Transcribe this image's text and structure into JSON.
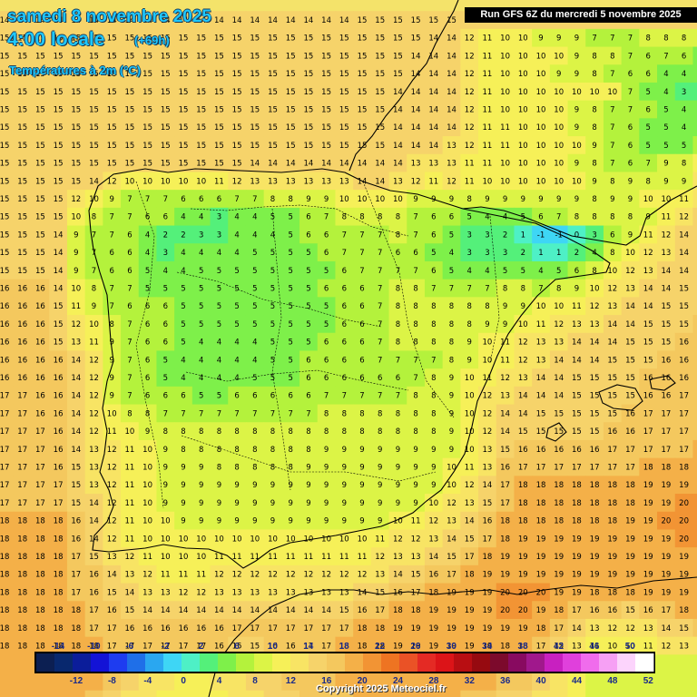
{
  "header": {
    "date": "samedi 8 novembre 2025",
    "time": "4:00 locale",
    "lead": "(+69h)",
    "parameter": "Températures à 2m (°C)"
  },
  "run_info": "Run GFS 6Z du mercredi 5 novembre 2025",
  "copyright": "Copyright 2025 Meteociel.fr",
  "legend": {
    "upper_ticks": [
      "-14",
      "-10",
      "-6",
      "-2",
      "2",
      "6",
      "10",
      "14",
      "18",
      "22",
      "26",
      "30",
      "34",
      "38",
      "42",
      "46",
      "50"
    ],
    "lower_ticks": [
      "-12",
      "-8",
      "-4",
      "0",
      "4",
      "8",
      "12",
      "16",
      "20",
      "24",
      "28",
      "32",
      "36",
      "40",
      "44",
      "48",
      "52"
    ],
    "colors": [
      "#0c1f52",
      "#08286e",
      "#0b1d9a",
      "#1313d6",
      "#1e3cf0",
      "#1f6fe8",
      "#2aa7f0",
      "#3ed6f5",
      "#4ef0c6",
      "#54f07a",
      "#7ef04a",
      "#b4f23c",
      "#dcf446",
      "#f6f058",
      "#f8e464",
      "#f6d36a",
      "#f4c85e",
      "#f4b048",
      "#f29434",
      "#ee7422",
      "#ea5226",
      "#e42a24",
      "#dc1418",
      "#b80e12",
      "#960a10",
      "#7c0a2c",
      "#880a60",
      "#a0188c",
      "#c820c0",
      "#e040dc",
      "#f06cec",
      "#f6a0f4",
      "#fcd4fc",
      "#ffffff"
    ]
  },
  "places_hint": "Iberian Peninsula, Balearic Islands, North Africa coast",
  "grid": {
    "rows": [
      "14 14 14 14 14 14 14 14 14 14 14 14 14 14 14 14 14 14 14 14 15 15 15 15 15 15 15 15 15 15 15 15 15 15 15 15 15 14 14 14",
      "15 15 15 15 15 15 15 15 15 15 15 15 15 15 15 15 15 15 15 15 15 15 15 15 14 14 12 11 10 10 9 9 9 7 7 7 8 8 8 8",
      "15 15 15 15 15 15 15 15 15 15 15 15 15 15 15 15 15 15 15 15 15 15 15 14 14 14 12 11 10 10 10 10 9 8 8 7 6 7 6 5",
      "15 15 15 15 15 15 15 15 15 15 15 15 15 15 15 15 15 15 15 15 15 15 15 14 14 14 12 11 10 10 10 9 9 8 7 6 6 4 4 5",
      "15 15 15 15 15 15 15 15 15 15 15 15 15 15 15 15 15 15 15 15 15 15 14 14 14 14 12 11 10 10 10 10 10 10 10 7 5 4 3 3",
      "15 15 15 15 15 15 15 15 15 15 15 15 15 15 15 15 15 15 15 15 15 15 14 14 14 14 12 11 10 10 10 10 9 8 7 7 6 5 4 4",
      "15 15 15 15 15 15 15 15 15 15 15 15 15 15 15 15 15 15 15 15 15 15 14 14 14 14 12 11 11 10 10 10 9 8 7 6 5 5 4 5",
      "15 15 15 15 15 15 15 15 15 15 15 15 15 15 15 15 15 15 15 15 15 15 14 14 14 13 12 11 11 10 10 10 10 9 7 6 5 5 5 6",
      "15 15 15 15 15 15 15 15 15 15 15 15 15 15 14 14 14 14 14 14 14 14 14 13 13 13 11 11 10 10 10 10 9 8 7 6 7 9 8 10",
      "15 15 15 15 15 14 12 10 10 10 10 10 11 12 13 13 13 13 13 13 14 14 13 12 11 12 11 10 10 10 10 10 10 9 8 9 8 9 9 12",
      "15 15 15 15 12 10 9 7 7 7 6 6 6 7 7 8 8 9 9 10 10 10 10 9 9 9 8 9 9 9 9 9 9 8 9 9 10 10 11 13",
      "15 15 15 15 10 8 7 7 6 6 4 4 3 4 4 5 5 6 7 8 8 8 8 7 6 6 5 4 4 5 6 7 8 8 8 8 9 11 12 14",
      "15 15 15 14 9 7 7 6 4 2 2 3 3 4 4 4 5 6 6 7 7 7 8 7 6 5 3 3 2 1 -1 -1 0 3 6 9 11 12 14 15",
      "15 15 15 14 9 7 6 6 4 3 4 4 4 4 5 5 5 5 6 7 7 7 6 6 5 4 3 3 3 2 1 1 2 4 8 10 12 13 14 15",
      "15 15 15 14 9 7 6 6 5 4 4 5 5 5 5 5 5 5 5 6 7 7 7 7 6 5 4 4 5 5 4 5 6 8 10 12 13 14 14 15",
      "16 16 16 14 10 8 7 7 5 5 5 5 5 5 5 5 5 5 6 6 6 7 8 8 7 7 7 7 8 8 7 8 9 10 12 13 14 14 15 15",
      "16 16 16 15 11 9 7 6 6 6 5 5 5 5 5 5 5 5 5 6 6 7 8 8 8 8 8 8 9 9 10 10 11 12 13 14 14 15 15 15",
      "16 16 16 15 12 10 8 7 6 6 5 5 5 5 5 5 5 5 5 6 6 7 8 8 8 8 8 9 9 10 11 12 13 13 14 14 15 15 15 16",
      "16 16 16 15 13 11 9 7 6 6 5 4 4 4 4 5 5 5 6 6 6 7 8 8 8 8 9 10 11 12 13 13 14 14 14 15 15 15 16 16",
      "16 16 16 16 14 12 9 7 6 5 4 4 4 4 4 5 5 6 6 6 6 7 7 7 7 8 9 10 11 12 13 14 14 14 15 15 15 16 16 16",
      "16 16 16 16 14 12 9 7 6 5 4 4 4 4 5 5 5 6 6 6 6 6 6 7 8 9 10 11 12 13 14 14 15 15 15 15 16 16 16 16",
      "17 17 16 16 14 12 9 7 6 6 6 5 5 6 6 6 6 6 7 7 7 7 7 8 8 9 10 12 13 14 14 14 15 15 15 15 16 16 17 17",
      "17 17 16 16 14 12 10 8 8 7 7 7 7 7 7 7 7 7 8 8 8 8 8 8 8 9 10 12 14 14 15 15 15 15 15 16 17 17 17 17",
      "17 17 17 16 14 12 11 10 9 8 8 8 8 8 8 8 8 8 8 8 8 8 8 8 8 9 10 12 14 15 15 15 15 15 16 16 17 17 17 17",
      "17 17 17 16 14 13 12 11 10 9 8 8 8 8 8 8 8 8 9 9 9 9 9 9 9 9 10 13 15 16 16 16 16 16 17 17 17 17 17 18",
      "17 17 17 16 15 13 12 11 10 9 9 9 8 8 8 8 8 9 9 9 9 9 9 9 9 10 11 13 16 17 17 17 17 17 17 17 18 18 18 18",
      "17 17 17 17 15 13 12 11 10 9 9 9 9 9 9 9 9 9 9 9 9 9 9 9 9 10 12 14 17 18 18 18 18 18 18 18 19 19 19 19",
      "17 17 17 17 15 14 12 11 10 9 9 9 9 9 9 9 9 9 9 9 9 9 9 9 10 12 13 15 17 18 18 18 18 18 18 18 19 19 20 20",
      "18 18 18 18 16 14 12 11 10 10 9 9 9 9 9 9 9 9 9 9 9 9 10 11 12 13 14 16 18 18 18 18 18 18 18 19 19 20 20 20",
      "18 18 18 18 16 14 12 11 10 10 10 10 10 10 10 10 10 10 10 10 10 11 12 12 13 14 15 17 18 19 19 19 19 19 19 19 19 19 20 20",
      "18 18 18 18 17 15 13 12 11 10 10 10 11 11 11 11 11 11 11 11 11 12 13 13 14 15 17 18 19 19 19 19 19 19 19 19 19 19 19 19",
      "18 18 18 18 17 16 14 13 12 11 11 11 12 12 12 12 12 12 12 12 12 13 14 15 16 17 18 19 19 19 19 19 19 19 19 19 19 19 19 19",
      "18 18 18 18 17 16 15 14 13 13 12 12 13 13 13 13 13 13 13 13 14 15 16 17 18 19 19 19 20 20 20 19 19 18 18 18 19 19 19 19",
      "18 18 18 18 18 17 16 15 14 14 14 14 14 14 14 14 14 14 14 15 16 17 18 18 19 19 19 19 20 20 19 18 17 16 16 15 16 17 18 18",
      "18 18 18 18 18 17 17 16 16 16 16 16 16 17 17 17 17 17 17 17 18 18 19 19 19 19 19 19 19 19 18 17 14 13 12 12 13 14 15 16",
      "18 18 18 18 18 18 17 17 17 17 17 17 16 15 15 16 16 17 17 18 18 18 19 19 19 19 19 19 18 18 17 15 13 11 10 10 11 12 13 13",
      "19 19 19 19 19 18 17 16 15 14 13 13 14 14 14 15 16 17 17 18 18 18 19 19 19 19 19 19 18 17 16 14 12 10 9 9 9 9 9 9",
      "19 19 19 19 19 18 16 15 13 12 11 11 12 13 14 15 16 17 17 18 18 18 18 18 18 18 18 18 17 16 15 13 11 9 8 8 8 8 8 8",
      "19 19 19 19 18 17 15 13 12 11 10 10 11 12 13 14 15 16 17 17 18 18 18 18 18 18 17 16 15 14 13 12 10 9 8 8 8 8 8 8",
      "20 20 20 20 18 16 14 12 11 10 10 10 11 12 13 14 15 16 17 17 17 17 17 17 17 17 16 15 14 13 12 11 10 9 8 8 8 8 8 8"
    ]
  }
}
